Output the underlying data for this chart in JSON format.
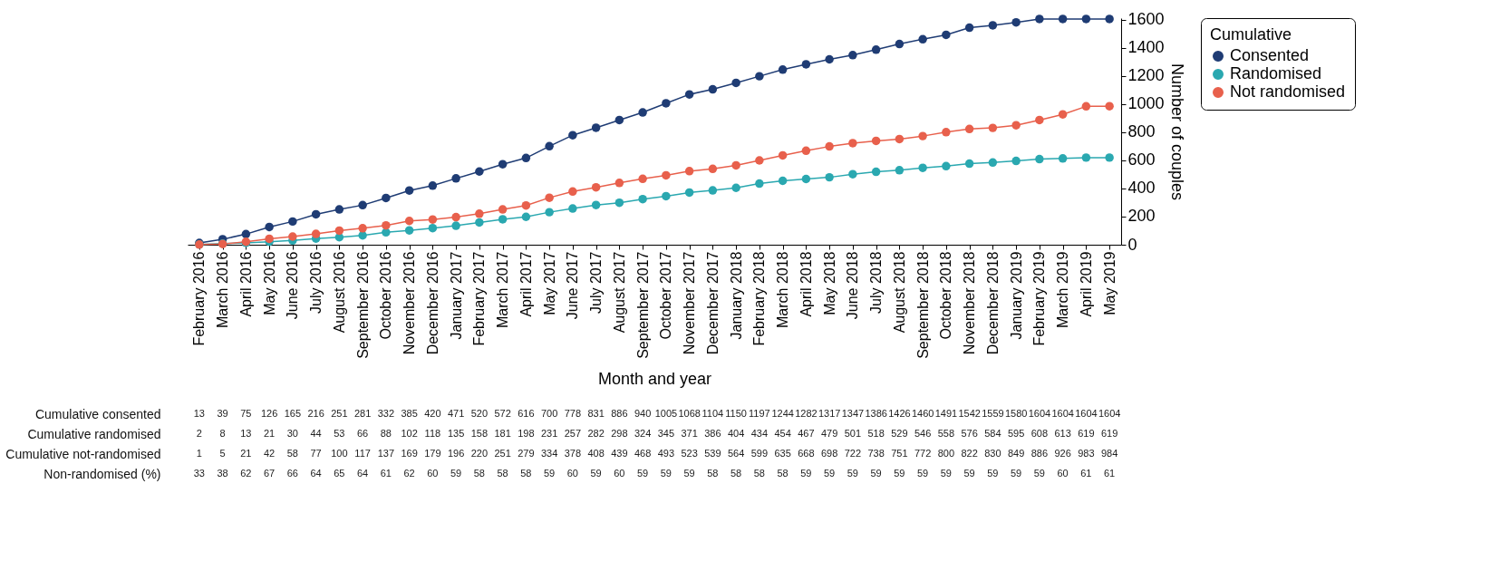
{
  "chart_data": [
    {
      "type": "line",
      "xlabel": "Month and year",
      "ylabel": "Number of couples",
      "legend_title": "Cumulative",
      "categories": [
        "February 2016",
        "March 2016",
        "April 2016",
        "May 2016",
        "June 2016",
        "July 2016",
        "August 2016",
        "September 2016",
        "October 2016",
        "November 2016",
        "December 2016",
        "January 2017",
        "February 2017",
        "March 2017",
        "April 2017",
        "May 2017",
        "June 2017",
        "July 2017",
        "August 2017",
        "September 2017",
        "October 2017",
        "November 2017",
        "December 2017",
        "January 2018",
        "February 2018",
        "March 2018",
        "April 2018",
        "May 2018",
        "June 2018",
        "July 2018",
        "August 2018",
        "September 2018",
        "October 2018",
        "November 2018",
        "December 2018",
        "January 2019",
        "February 2019",
        "March 2019",
        "April 2019",
        "May 2019"
      ],
      "series": [
        {
          "name": "Consented",
          "color": "#1f3c74",
          "values": [
            13,
            39,
            75,
            126,
            165,
            216,
            251,
            281,
            332,
            385,
            420,
            471,
            520,
            572,
            616,
            700,
            778,
            831,
            886,
            940,
            1005,
            1068,
            1104,
            1150,
            1197,
            1244,
            1282,
            1317,
            1347,
            1386,
            1426,
            1460,
            1491,
            1542,
            1559,
            1580,
            1604,
            1604,
            1604,
            1604
          ]
        },
        {
          "name": "Randomised",
          "color": "#2aa8b0",
          "values": [
            2,
            8,
            13,
            21,
            30,
            44,
            53,
            66,
            88,
            102,
            118,
            135,
            158,
            181,
            198,
            231,
            257,
            282,
            298,
            324,
            345,
            371,
            386,
            404,
            434,
            454,
            467,
            479,
            501,
            518,
            529,
            546,
            558,
            576,
            584,
            595,
            608,
            613,
            619,
            619
          ]
        },
        {
          "name": "Not randomised",
          "color": "#e8604c",
          "values": [
            1,
            5,
            21,
            42,
            58,
            77,
            100,
            117,
            137,
            169,
            179,
            196,
            220,
            251,
            279,
            334,
            378,
            408,
            439,
            468,
            493,
            523,
            539,
            564,
            599,
            635,
            668,
            698,
            722,
            738,
            751,
            772,
            800,
            822,
            830,
            849,
            886,
            926,
            983,
            984
          ]
        }
      ],
      "annotations": [
        "Cumulative consented",
        "Cumulative randomised",
        "Cumulative not-randomised"
      ],
      "data_labels": true,
      "ylim": [
        0,
        1610
      ],
      "yticks": [
        0,
        200,
        400,
        600,
        800,
        1000,
        1200,
        1400,
        1600
      ],
      "grid": false,
      "legend": "right",
      "marker": "circle",
      "line_style": "solid"
    },
    {
      "type": "other",
      "categories": [
        null,
        null,
        null,
        null,
        null,
        null,
        null,
        null,
        null,
        null,
        null,
        null,
        null,
        null,
        null,
        null,
        null,
        null,
        null,
        null,
        null,
        null,
        null,
        null,
        null,
        null,
        null,
        null,
        null,
        null,
        null,
        null,
        null,
        null,
        null,
        null,
        null,
        null,
        null,
        null
      ],
      "values": [
        33,
        38,
        62,
        67,
        66,
        64,
        65,
        64,
        61,
        62,
        60,
        59,
        58,
        58,
        58,
        59,
        60,
        59,
        60,
        59,
        59,
        59,
        58,
        58,
        58,
        58,
        59,
        59,
        59,
        59,
        59,
        59,
        59,
        59,
        59,
        59,
        59,
        60,
        61,
        61
      ],
      "annotations": [
        "Non-randomised (%)"
      ],
      "data_labels": true
    }
  ]
}
